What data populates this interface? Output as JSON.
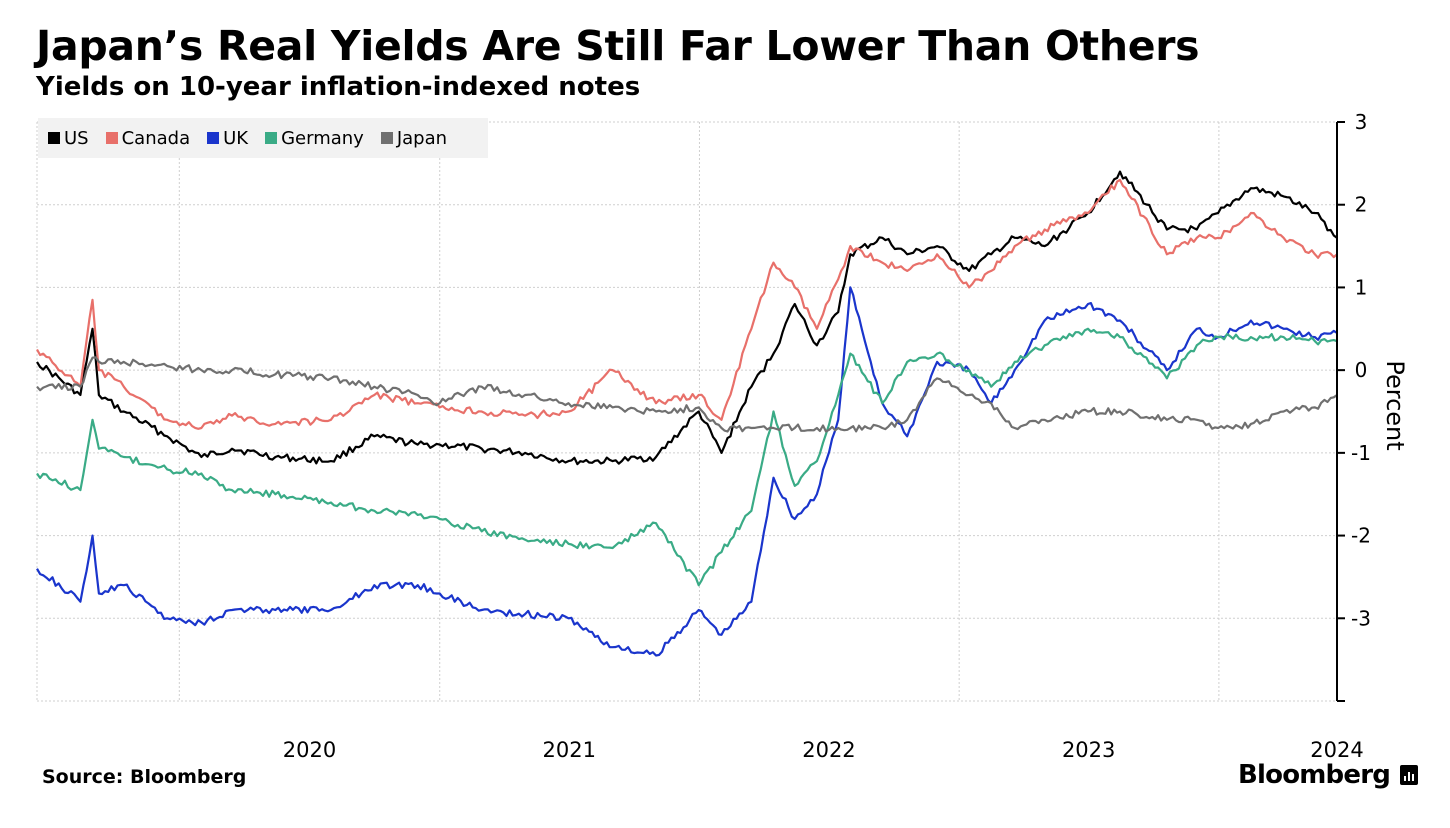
{
  "title": "Japan’s Real Yields Are Still Far Lower Than Others",
  "subtitle": "Yields on 10-year inflation-indexed notes",
  "source": "Source: Bloomberg",
  "brand": "Bloomberg",
  "chart_data": {
    "type": "line",
    "title": "Japan’s Real Yields Are Still Far Lower Than Others",
    "subtitle": "Yields on 10-year inflation-indexed notes",
    "xlabel": "",
    "ylabel": "Percent",
    "ylim": [
      -4,
      3
    ],
    "yticks": [
      3,
      2,
      1,
      0,
      -1,
      -2,
      -3
    ],
    "ytick_labels": [
      "3",
      "2",
      "1",
      "0",
      "-1",
      "-2",
      "-3"
    ],
    "xlim": [
      "2019-06-15",
      "2024-06-15"
    ],
    "xtick_labels": [
      "2020",
      "2021",
      "2022",
      "2023",
      "2024"
    ],
    "xticks": [
      "2020-01-01",
      "2021-01-01",
      "2022-01-01",
      "2023-01-01",
      "2024-01-01"
    ],
    "grid": true,
    "legend_position": "top-left",
    "x": [
      "2019-06-15",
      "2019-08-15",
      "2019-09-01",
      "2019-09-10",
      "2019-10-15",
      "2019-12-15",
      "2020-02-01",
      "2020-03-15",
      "2020-05-15",
      "2020-08-01",
      "2020-10-01",
      "2020-12-01",
      "2021-01-01",
      "2021-03-01",
      "2021-05-01",
      "2021-07-01",
      "2021-09-01",
      "2021-11-01",
      "2021-12-31",
      "2022-02-01",
      "2022-03-15",
      "2022-04-15",
      "2022-05-15",
      "2022-06-15",
      "2022-07-15",
      "2022-08-01",
      "2022-09-15",
      "2022-10-20",
      "2022-12-01",
      "2023-01-15",
      "2023-02-15",
      "2023-03-20",
      "2023-05-01",
      "2023-07-01",
      "2023-08-15",
      "2023-10-20",
      "2023-12-01",
      "2023-12-31",
      "2024-02-15",
      "2024-04-01",
      "2024-05-15",
      "2024-06-15"
    ],
    "series": [
      {
        "name": "US",
        "color": "#000000",
        "values": [
          0.1,
          -0.3,
          0.5,
          -0.3,
          -0.5,
          -0.8,
          -1.05,
          -0.95,
          -1.05,
          -1.1,
          -0.8,
          -0.9,
          -0.9,
          -0.95,
          -1.0,
          -1.1,
          -1.1,
          -1.05,
          -0.5,
          -1.0,
          -0.2,
          0.2,
          0.8,
          0.3,
          0.7,
          1.4,
          1.6,
          1.4,
          1.5,
          1.2,
          1.4,
          1.6,
          1.5,
          1.9,
          2.4,
          1.7,
          1.7,
          1.9,
          2.2,
          2.1,
          1.9,
          1.6
        ]
      },
      {
        "name": "Canada",
        "color": "#e8706a",
        "values": [
          0.25,
          -0.2,
          0.85,
          0.0,
          -0.2,
          -0.6,
          -0.7,
          -0.55,
          -0.65,
          -0.6,
          -0.3,
          -0.4,
          -0.45,
          -0.5,
          -0.55,
          -0.5,
          0.0,
          -0.4,
          -0.3,
          -0.6,
          0.5,
          1.3,
          1.0,
          0.5,
          1.1,
          1.5,
          1.3,
          1.2,
          1.4,
          1.0,
          1.2,
          1.5,
          1.7,
          1.9,
          2.3,
          1.4,
          1.6,
          1.6,
          1.9,
          1.6,
          1.4,
          1.4
        ]
      },
      {
        "name": "UK",
        "color": "#1a35cc",
        "values": [
          -2.4,
          -2.8,
          -2.0,
          -2.7,
          -2.6,
          -3.0,
          -3.05,
          -2.9,
          -2.9,
          -2.9,
          -2.6,
          -2.6,
          -2.7,
          -2.9,
          -2.95,
          -3.0,
          -3.35,
          -3.45,
          -2.9,
          -3.2,
          -2.8,
          -1.3,
          -1.8,
          -1.5,
          -0.6,
          1.0,
          -0.4,
          -0.8,
          0.1,
          0.0,
          -0.4,
          0.0,
          0.6,
          0.8,
          0.6,
          0.0,
          0.5,
          0.4,
          0.6,
          0.5,
          0.4,
          0.45
        ]
      },
      {
        "name": "Germany",
        "color": "#3aab86",
        "values": [
          -1.25,
          -1.45,
          -0.6,
          -0.95,
          -1.05,
          -1.2,
          -1.25,
          -1.45,
          -1.5,
          -1.6,
          -1.7,
          -1.75,
          -1.8,
          -1.95,
          -2.05,
          -2.1,
          -2.15,
          -1.85,
          -2.6,
          -2.2,
          -1.7,
          -0.5,
          -1.4,
          -1.1,
          -0.3,
          0.2,
          -0.4,
          0.1,
          0.2,
          0.0,
          -0.2,
          0.1,
          0.3,
          0.5,
          0.4,
          -0.1,
          0.3,
          0.4,
          0.4,
          0.4,
          0.35,
          0.35
        ]
      },
      {
        "name": "Japan",
        "color": "#707070",
        "values": [
          -0.2,
          -0.2,
          0.15,
          0.1,
          0.1,
          0.05,
          0.0,
          0.0,
          -0.05,
          -0.1,
          -0.2,
          -0.3,
          -0.4,
          -0.2,
          -0.3,
          -0.4,
          -0.45,
          -0.5,
          -0.45,
          -0.7,
          -0.7,
          -0.7,
          -0.7,
          -0.7,
          -0.7,
          -0.7,
          -0.7,
          -0.6,
          -0.1,
          -0.3,
          -0.4,
          -0.7,
          -0.6,
          -0.5,
          -0.5,
          -0.6,
          -0.6,
          -0.7,
          -0.65,
          -0.5,
          -0.45,
          -0.3
        ]
      }
    ]
  }
}
